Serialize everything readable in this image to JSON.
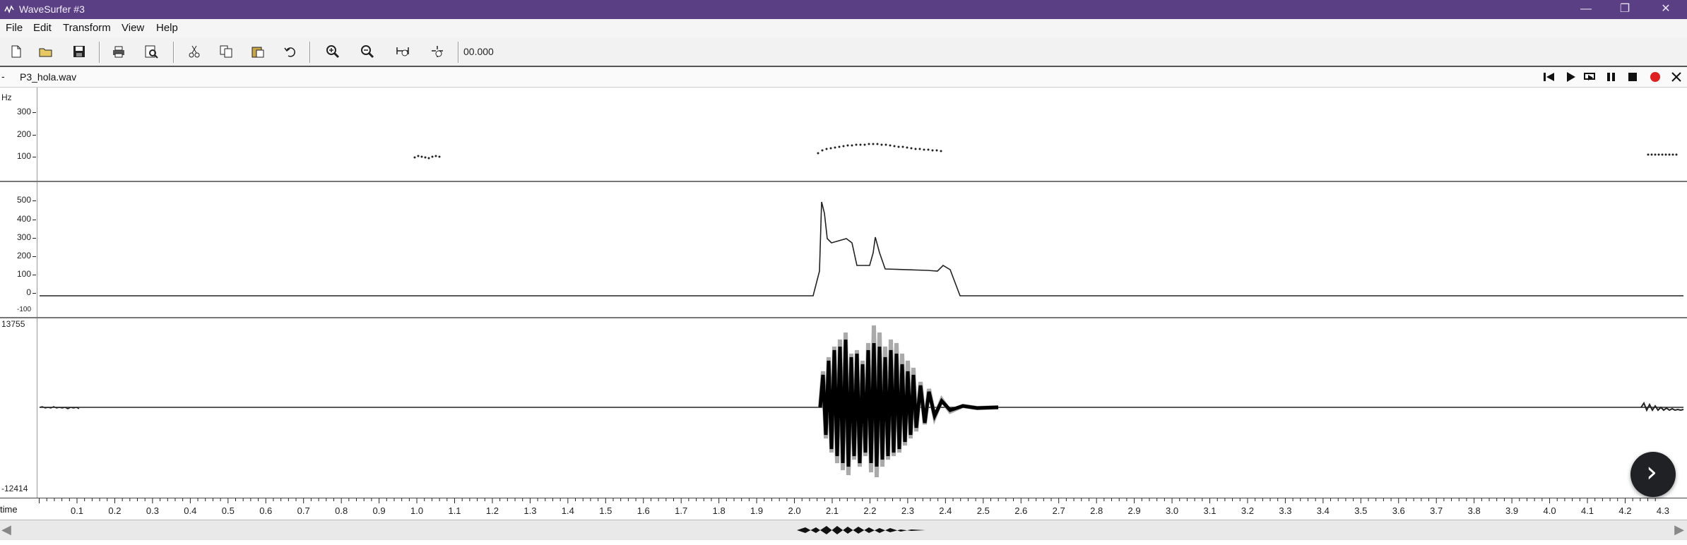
{
  "window": {
    "title": "WaveSurfer #3",
    "minimize_glyph": "—",
    "restore_glyph": "❐",
    "close_glyph": "✕",
    "titlebar_color": "#5b3f85"
  },
  "menu": [
    "File",
    "Edit",
    "Transform",
    "View",
    "Help"
  ],
  "toolbar": {
    "buttons": [
      "new-file-icon",
      "open-folder-icon",
      "save-icon",
      "print-icon",
      "print-preview-icon",
      "cut-icon",
      "copy-icon",
      "paste-icon",
      "undo-icon",
      "zoom-in-icon",
      "zoom-out-icon",
      "zoom-fit-icon",
      "zoom-selection-icon"
    ],
    "time_readout": "00.000"
  },
  "file": {
    "dash": "-",
    "name": "P3_hola.wav",
    "playback_buttons": [
      "skip-to-start-icon",
      "play-icon",
      "play-loop-icon",
      "pause-icon",
      "stop-icon",
      "record-icon",
      "close-icon"
    ],
    "record_color": "#e02020"
  },
  "pitch_pane": {
    "unit": "Hz",
    "ticks": [
      "300",
      "200",
      "100"
    ]
  },
  "formant_pane": {
    "ticks": [
      "500",
      "400",
      "300",
      "200",
      "100",
      "0",
      "-100"
    ]
  },
  "waveform_pane": {
    "max_label": "13755",
    "min_label": "-12414"
  },
  "time_axis": {
    "label": "time",
    "ticks": [
      "0.1",
      "0.2",
      "0.3",
      "0.4",
      "0.5",
      "0.6",
      "0.7",
      "0.8",
      "0.9",
      "1.0",
      "1.1",
      "1.2",
      "1.3",
      "1.4",
      "1.5",
      "1.6",
      "1.7",
      "1.8",
      "1.9",
      "2.0",
      "2.1",
      "2.2",
      "2.3",
      "2.4",
      "2.5",
      "2.6",
      "2.7",
      "2.8",
      "2.9",
      "3.0",
      "3.1",
      "3.2",
      "3.3",
      "3.4",
      "3.5",
      "3.6",
      "3.7",
      "3.8",
      "3.9",
      "4.0",
      "4.1",
      "4.2",
      "4.3"
    ]
  },
  "scrollbar": {
    "left_arrow": "◀",
    "right_arrow": "▶"
  },
  "next_button": {
    "glyph": "›"
  }
}
